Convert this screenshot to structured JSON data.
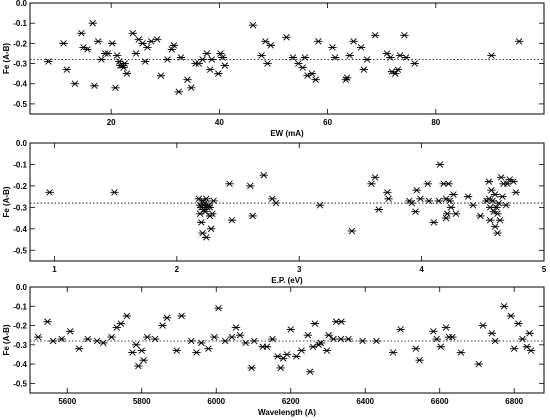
{
  "chart_data": [
    {
      "type": "scatter",
      "xlabel": "EW (mA)",
      "ylabel": "Fe (A-B)",
      "xlim": [
        5,
        100
      ],
      "ylim": [
        -0.55,
        0.0
      ],
      "xticks": [
        20,
        40,
        60,
        80
      ],
      "yticks": [
        0.0,
        -0.1,
        -0.2,
        -0.3,
        -0.4,
        -0.5
      ],
      "xtick_labels": [
        "20",
        "40",
        "60",
        "80"
      ],
      "ytick_labels": [
        "0.0",
        "-0.1",
        "-0.2",
        "-0.3",
        "-0.4",
        "-0.5"
      ],
      "reference_y": -0.28,
      "marker": "asterisk",
      "points": [
        [
          8.4,
          -0.29
        ],
        [
          11.2,
          -0.2
        ],
        [
          11.8,
          -0.33
        ],
        [
          13.3,
          -0.4
        ],
        [
          14.5,
          -0.15
        ],
        [
          14.9,
          -0.22
        ],
        [
          15.6,
          -0.23
        ],
        [
          16.6,
          -0.1
        ],
        [
          16.9,
          -0.41
        ],
        [
          17.6,
          -0.19
        ],
        [
          18.2,
          -0.28
        ],
        [
          18.9,
          -0.25
        ],
        [
          19.4,
          -0.25
        ],
        [
          20.2,
          -0.2
        ],
        [
          20.8,
          -0.42
        ],
        [
          21.1,
          -0.26
        ],
        [
          21.5,
          -0.29
        ],
        [
          21.7,
          -0.31
        ],
        [
          22.1,
          -0.31
        ],
        [
          22.3,
          -0.32
        ],
        [
          22.5,
          -0.3
        ],
        [
          22.9,
          -0.35
        ],
        [
          24.0,
          -0.15
        ],
        [
          24.6,
          -0.25
        ],
        [
          25.1,
          -0.18
        ],
        [
          25.8,
          -0.2
        ],
        [
          26.3,
          -0.29
        ],
        [
          26.7,
          -0.22
        ],
        [
          27.4,
          -0.19
        ],
        [
          28.5,
          -0.18
        ],
        [
          29.2,
          -0.36
        ],
        [
          30.4,
          -0.28
        ],
        [
          31.2,
          -0.23
        ],
        [
          31.6,
          -0.21
        ],
        [
          32.5,
          -0.44
        ],
        [
          32.9,
          -0.27
        ],
        [
          34.1,
          -0.38
        ],
        [
          34.8,
          -0.42
        ],
        [
          35.6,
          -0.3
        ],
        [
          36.2,
          -0.3
        ],
        [
          36.9,
          -0.28
        ],
        [
          37.7,
          -0.25
        ],
        [
          38.3,
          -0.33
        ],
        [
          38.6,
          -0.28
        ],
        [
          39.8,
          -0.35
        ],
        [
          40.2,
          -0.25
        ],
        [
          40.6,
          -0.27
        ],
        [
          41.0,
          -0.31
        ],
        [
          46.2,
          -0.11
        ],
        [
          47.8,
          -0.26
        ],
        [
          48.5,
          -0.19
        ],
        [
          48.9,
          -0.3
        ],
        [
          49.5,
          -0.21
        ],
        [
          52.4,
          -0.17
        ],
        [
          53.6,
          -0.27
        ],
        [
          54.6,
          -0.3
        ],
        [
          55.4,
          -0.32
        ],
        [
          55.8,
          -0.27
        ],
        [
          56.3,
          -0.36
        ],
        [
          57.1,
          -0.35
        ],
        [
          57.8,
          -0.38
        ],
        [
          58.3,
          -0.19
        ],
        [
          60.9,
          -0.22
        ],
        [
          61.4,
          -0.27
        ],
        [
          63.4,
          -0.38
        ],
        [
          63.6,
          -0.37
        ],
        [
          64.1,
          -0.26
        ],
        [
          64.8,
          -0.19
        ],
        [
          66.2,
          -0.22
        ],
        [
          66.7,
          -0.33
        ],
        [
          67.3,
          -0.28
        ],
        [
          68.8,
          -0.16
        ],
        [
          71.0,
          -0.25
        ],
        [
          71.6,
          -0.27
        ],
        [
          71.9,
          -0.34
        ],
        [
          72.5,
          -0.35
        ],
        [
          73.0,
          -0.33
        ],
        [
          73.4,
          -0.26
        ],
        [
          74.2,
          -0.16
        ],
        [
          74.5,
          -0.27
        ],
        [
          76.1,
          -0.3
        ],
        [
          90.3,
          -0.26
        ],
        [
          95.4,
          -0.19
        ]
      ]
    },
    {
      "type": "scatter",
      "xlabel": "E.P. (eV)",
      "ylabel": "Fe (A-B)",
      "xlim": [
        0.8,
        5.0
      ],
      "ylim": [
        -0.55,
        0.0
      ],
      "xticks": [
        1,
        2,
        3,
        4,
        5
      ],
      "yticks": [
        0.0,
        -0.1,
        -0.2,
        -0.3,
        -0.4,
        -0.5
      ],
      "xtick_labels": [
        "1",
        "2",
        "3",
        "4",
        "5"
      ],
      "ytick_labels": [
        "0.0",
        "-0.1",
        "-0.2",
        "-0.3",
        "-0.4",
        "-0.5"
      ],
      "reference_y": -0.28,
      "marker": "asterisk",
      "points": [
        [
          0.96,
          -0.23
        ],
        [
          1.49,
          -0.23
        ],
        [
          2.18,
          -0.26
        ],
        [
          2.19,
          -0.29
        ],
        [
          2.19,
          -0.33
        ],
        [
          2.2,
          -0.3
        ],
        [
          2.2,
          -0.37
        ],
        [
          2.21,
          -0.27
        ],
        [
          2.21,
          -0.42
        ],
        [
          2.22,
          -0.29
        ],
        [
          2.22,
          -0.31
        ],
        [
          2.23,
          -0.28
        ],
        [
          2.23,
          -0.32
        ],
        [
          2.24,
          -0.26
        ],
        [
          2.24,
          -0.44
        ],
        [
          2.25,
          -0.3
        ],
        [
          2.26,
          -0.29
        ],
        [
          2.27,
          -0.3
        ],
        [
          2.27,
          -0.34
        ],
        [
          2.28,
          -0.4
        ],
        [
          2.29,
          -0.33
        ],
        [
          2.3,
          -0.27
        ],
        [
          2.43,
          -0.19
        ],
        [
          2.45,
          -0.36
        ],
        [
          2.6,
          -0.2
        ],
        [
          2.62,
          -0.34
        ],
        [
          2.71,
          -0.15
        ],
        [
          2.78,
          -0.26
        ],
        [
          2.81,
          -0.28
        ],
        [
          3.17,
          -0.29
        ],
        [
          3.43,
          -0.41
        ],
        [
          3.59,
          -0.19
        ],
        [
          3.62,
          -0.16
        ],
        [
          3.65,
          -0.31
        ],
        [
          3.72,
          -0.23
        ],
        [
          3.73,
          -0.26
        ],
        [
          3.9,
          -0.27
        ],
        [
          3.92,
          -0.28
        ],
        [
          3.95,
          -0.32
        ],
        [
          3.96,
          -0.22
        ],
        [
          3.99,
          -0.26
        ],
        [
          4.05,
          -0.19
        ],
        [
          4.06,
          -0.27
        ],
        [
          4.1,
          -0.37
        ],
        [
          4.14,
          -0.27
        ],
        [
          4.15,
          -0.1
        ],
        [
          4.18,
          -0.19
        ],
        [
          4.2,
          -0.26
        ],
        [
          4.2,
          -0.35
        ],
        [
          4.21,
          -0.33
        ],
        [
          4.22,
          -0.19
        ],
        [
          4.23,
          -0.27
        ],
        [
          4.24,
          -0.3
        ],
        [
          4.26,
          -0.24
        ],
        [
          4.28,
          -0.33
        ],
        [
          4.38,
          -0.25
        ],
        [
          4.42,
          -0.29
        ],
        [
          4.48,
          -0.34
        ],
        [
          4.53,
          -0.27
        ],
        [
          4.55,
          -0.18
        ],
        [
          4.55,
          -0.26
        ],
        [
          4.56,
          -0.3
        ],
        [
          4.56,
          -0.36
        ],
        [
          4.57,
          -0.22
        ],
        [
          4.58,
          -0.27
        ],
        [
          4.59,
          -0.32
        ],
        [
          4.6,
          -0.24
        ],
        [
          4.6,
          -0.39
        ],
        [
          4.61,
          -0.3
        ],
        [
          4.62,
          -0.33
        ],
        [
          4.62,
          -0.42
        ],
        [
          4.63,
          -0.28
        ],
        [
          4.64,
          -0.36
        ],
        [
          4.65,
          -0.16
        ],
        [
          4.66,
          -0.25
        ],
        [
          4.67,
          -0.19
        ],
        [
          4.69,
          -0.29
        ],
        [
          4.7,
          -0.19
        ],
        [
          4.72,
          -0.17
        ],
        [
          4.75,
          -0.18
        ],
        [
          4.77,
          -0.23
        ]
      ]
    },
    {
      "type": "scatter",
      "xlabel": "Wavelength (A)",
      "ylabel": "Fe (A-B)",
      "xlim": [
        5500,
        6880
      ],
      "ylim": [
        -0.55,
        0.0
      ],
      "xticks": [
        5600,
        5800,
        6000,
        6200,
        6400,
        6600,
        6800
      ],
      "yticks": [
        0.0,
        -0.1,
        -0.2,
        -0.3,
        -0.4,
        -0.5
      ],
      "xtick_labels": [
        "5600",
        "5800",
        "6000",
        "6200",
        "6400",
        "6600",
        "6800"
      ],
      "ytick_labels": [
        "0.0",
        "-0.1",
        "-0.2",
        "-0.3",
        "-0.4",
        "-0.5"
      ],
      "reference_y": -0.28,
      "marker": "asterisk",
      "points": [
        [
          5522,
          -0.26
        ],
        [
          5547,
          -0.18
        ],
        [
          5562,
          -0.28
        ],
        [
          5585,
          -0.27
        ],
        [
          5608,
          -0.23
        ],
        [
          5632,
          -0.32
        ],
        [
          5655,
          -0.27
        ],
        [
          5680,
          -0.28
        ],
        [
          5697,
          -0.29
        ],
        [
          5719,
          -0.26
        ],
        [
          5733,
          -0.21
        ],
        [
          5744,
          -0.19
        ],
        [
          5760,
          -0.15
        ],
        [
          5775,
          -0.34
        ],
        [
          5785,
          -0.3
        ],
        [
          5791,
          -0.41
        ],
        [
          5800,
          -0.33
        ],
        [
          5805,
          -0.38
        ],
        [
          5815,
          -0.26
        ],
        [
          5836,
          -0.27
        ],
        [
          5856,
          -0.2
        ],
        [
          5868,
          -0.16
        ],
        [
          5894,
          -0.33
        ],
        [
          5907,
          -0.15
        ],
        [
          5933,
          -0.28
        ],
        [
          5947,
          -0.34
        ],
        [
          5960,
          -0.29
        ],
        [
          5979,
          -0.32
        ],
        [
          5995,
          -0.26
        ],
        [
          6006,
          -0.11
        ],
        [
          6024,
          -0.28
        ],
        [
          6042,
          -0.26
        ],
        [
          6053,
          -0.21
        ],
        [
          6064,
          -0.25
        ],
        [
          6079,
          -0.29
        ],
        [
          6095,
          -0.42
        ],
        [
          6102,
          -0.28
        ],
        [
          6125,
          -0.31
        ],
        [
          6136,
          -0.31
        ],
        [
          6151,
          -0.27
        ],
        [
          6165,
          -0.36
        ],
        [
          6173,
          -0.42
        ],
        [
          6180,
          -0.37
        ],
        [
          6190,
          -0.35
        ],
        [
          6200,
          -0.22
        ],
        [
          6215,
          -0.36
        ],
        [
          6229,
          -0.33
        ],
        [
          6246,
          -0.25
        ],
        [
          6252,
          -0.44
        ],
        [
          6260,
          -0.31
        ],
        [
          6265,
          -0.19
        ],
        [
          6275,
          -0.3
        ],
        [
          6281,
          -0.29
        ],
        [
          6297,
          -0.33
        ],
        [
          6302,
          -0.25
        ],
        [
          6315,
          -0.27
        ],
        [
          6322,
          -0.18
        ],
        [
          6335,
          -0.27
        ],
        [
          6336,
          -0.18
        ],
        [
          6355,
          -0.27
        ],
        [
          6393,
          -0.28
        ],
        [
          6430,
          -0.28
        ],
        [
          6475,
          -0.34
        ],
        [
          6495,
          -0.22
        ],
        [
          6536,
          -0.32
        ],
        [
          6546,
          -0.38
        ],
        [
          6583,
          -0.23
        ],
        [
          6592,
          -0.27
        ],
        [
          6603,
          -0.31
        ],
        [
          6617,
          -0.21
        ],
        [
          6625,
          -0.26
        ],
        [
          6634,
          -0.26
        ],
        [
          6657,
          -0.34
        ],
        [
          6705,
          -0.4
        ],
        [
          6716,
          -0.2
        ],
        [
          6740,
          -0.24
        ],
        [
          6749,
          -0.28
        ],
        [
          6773,
          -0.1
        ],
        [
          6791,
          -0.15
        ],
        [
          6800,
          -0.32
        ],
        [
          6811,
          -0.19
        ],
        [
          6822,
          -0.27
        ],
        [
          6834,
          -0.31
        ],
        [
          6841,
          -0.24
        ],
        [
          6845,
          -0.33
        ]
      ]
    }
  ]
}
